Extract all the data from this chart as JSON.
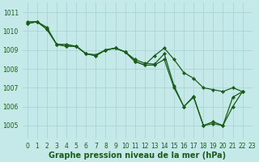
{
  "xlabel": "Graphe pression niveau de la mer (hPa)",
  "xlim": [
    -0.5,
    23
  ],
  "ylim": [
    1004.3,
    1011.5
  ],
  "yticks": [
    1005,
    1006,
    1007,
    1008,
    1009,
    1010,
    1011
  ],
  "xticks": [
    0,
    1,
    2,
    3,
    4,
    5,
    6,
    7,
    8,
    9,
    10,
    11,
    12,
    13,
    14,
    15,
    16,
    17,
    18,
    19,
    20,
    21,
    22,
    23
  ],
  "background_color": "#c5e8e8",
  "grid_color": "#aad4d4",
  "series": [
    {
      "color": "#1a5c1a",
      "lw": 0.9,
      "data": [
        1010.4,
        1010.5,
        1010.1,
        1009.3,
        1009.2,
        1009.2,
        1008.8,
        1008.7,
        1009.0,
        1009.1,
        1008.9,
        1008.5,
        1008.3,
        1008.25,
        1008.8,
        1007.1,
        1006.0,
        1006.55,
        1005.0,
        1005.2,
        1005.0,
        1006.5,
        1006.8,
        null
      ]
    },
    {
      "color": "#1a5c1a",
      "lw": 0.9,
      "data": [
        1010.4,
        1010.5,
        1010.1,
        1009.3,
        1009.2,
        1009.2,
        1008.8,
        1008.7,
        1009.0,
        1009.1,
        1008.9,
        1008.4,
        1008.2,
        1008.2,
        1008.5,
        1007.0,
        1006.0,
        1006.5,
        1005.0,
        1005.1,
        1005.0,
        1006.0,
        1006.8,
        null
      ]
    },
    {
      "color": "#1a5c1a",
      "lw": 0.9,
      "data": [
        1010.5,
        1010.5,
        1010.2,
        1009.3,
        1009.3,
        1009.2,
        1008.8,
        1008.75,
        1009.0,
        1009.1,
        1008.9,
        1008.4,
        1008.2,
        1008.7,
        1009.1,
        1008.5,
        1007.8,
        1007.5,
        1007.0,
        1006.9,
        1006.8,
        1007.0,
        1006.8,
        null
      ]
    }
  ],
  "marker": "D",
  "marker_size": 2.2,
  "font_color": "#1a5c1a",
  "tick_fontsize": 5.5,
  "label_fontsize": 7.0
}
